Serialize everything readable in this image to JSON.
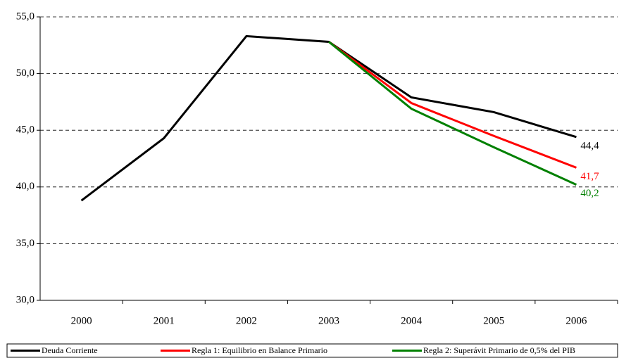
{
  "chart_data": {
    "type": "line",
    "categories": [
      "2000",
      "2001",
      "2002",
      "2003",
      "2004",
      "2005",
      "2006"
    ],
    "series": [
      {
        "name": "Deuda Corriente",
        "color": "#000000",
        "values": [
          38.8,
          44.3,
          53.3,
          52.8,
          47.9,
          46.6,
          44.4
        ],
        "value_labels": [
          null,
          null,
          null,
          null,
          null,
          null,
          "44,4"
        ]
      },
      {
        "name": "Regla 1: Equilibrio en Balance Primario",
        "color": "#ff0000",
        "values": [
          null,
          null,
          null,
          52.8,
          47.4,
          44.5,
          41.7
        ],
        "value_labels": [
          null,
          null,
          null,
          null,
          null,
          null,
          "41,7"
        ]
      },
      {
        "name": "Regla 2: Superávit Primario de 0,5% del PIB",
        "color": "#008000",
        "values": [
          null,
          null,
          null,
          52.8,
          46.9,
          43.5,
          40.2
        ],
        "value_labels": [
          null,
          null,
          null,
          null,
          null,
          null,
          "40,2"
        ]
      }
    ],
    "ylim": [
      30,
      55
    ],
    "yticks": [
      {
        "value": 30,
        "label": "30,0"
      },
      {
        "value": 35,
        "label": "35,0"
      },
      {
        "value": 40,
        "label": "40,0"
      },
      {
        "value": 45,
        "label": "45,0"
      },
      {
        "value": 50,
        "label": "50,0"
      },
      {
        "value": 55,
        "label": "55,0"
      }
    ],
    "grid": true
  }
}
